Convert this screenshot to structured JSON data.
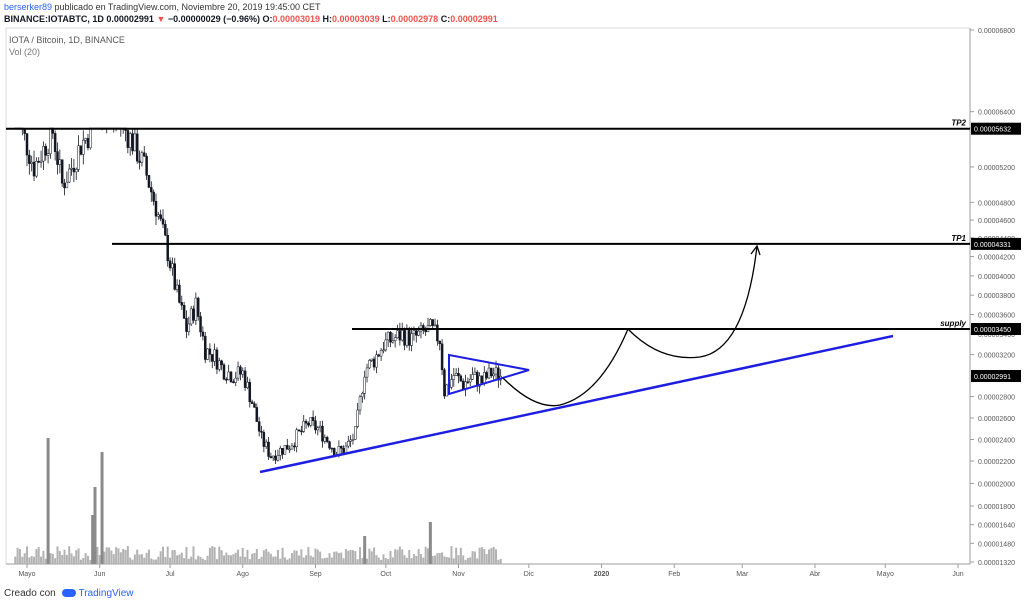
{
  "header": {
    "user": "berserker89",
    "published": "publicado en TradingView.com, Noviembre 20, 2019 19:45:00 CET",
    "symbol_line": "BINANCE:IOTABTC, 1D",
    "last": "0.00002991",
    "change": "−0.00000029 (−0.96%)",
    "ohlc_o_label": "O:",
    "ohlc_o": "0.00003019",
    "ohlc_h_label": "H:",
    "ohlc_h": "0.00003039",
    "ohlc_l_label": "L:",
    "ohlc_l": "0.00002978",
    "ohlc_c_label": "C:",
    "ohlc_c": "0.00002991"
  },
  "legend": {
    "symbol": "IOTA / Bitcoin, 1D, BINANCE",
    "volume": "Vol (20)"
  },
  "footer": {
    "created": "Creado con",
    "brand": "TradingView"
  },
  "colors": {
    "up": "#131722",
    "down": "#131722",
    "trend": "#1e1ee0",
    "level": "#000000",
    "volume": "#b2b2b2",
    "volume_peak": "#8a8a8a"
  },
  "chart_data": {
    "type": "candlestick",
    "x_labels": [
      "Mayo",
      "Jun",
      "Jul",
      "Ago",
      "Sep",
      "Oct",
      "Nov",
      "Dic",
      "2020",
      "Feb",
      "Mar",
      "Abr",
      "Mayo",
      "Jun"
    ],
    "y_ticks": [
      "0.00006800",
      "0.00006400",
      "0.00006000",
      "0.00005632",
      "0.00005200",
      "0.00004800",
      "0.00004600",
      "0.00004400",
      "0.00004331",
      "0.00004200",
      "0.00004000",
      "0.00003800",
      "0.00003600",
      "0.00003450",
      "0.00003400",
      "0.00003200",
      "0.00002991",
      "0.00002800",
      "0.00002600",
      "0.00002400",
      "0.00002200",
      "0.00002000",
      "0.00001800",
      "0.00001640",
      "0.00001480",
      "0.00001320"
    ],
    "y_ticks_plain": [
      "0.00006800",
      "0.00006400",
      "0.00006000",
      "0.00005200",
      "0.00004800",
      "0.00004600",
      "0.00004400",
      "0.00004200",
      "0.00004000",
      "0.00003800",
      "0.00003600",
      "0.00003400",
      "0.00003200",
      "0.00002800",
      "0.00002600",
      "0.00002400",
      "0.00002200",
      "0.00002000",
      "0.00001800",
      "0.00001640",
      "0.00001480",
      "0.00001320"
    ],
    "levels": [
      {
        "label": "TP2",
        "value": "0.00005632",
        "y": 5.632e-05
      },
      {
        "label": "TP1",
        "value": "0.00004331",
        "y": 4.331e-05
      },
      {
        "label": "supply",
        "value": "0.00003450",
        "y": 3.45e-05
      }
    ],
    "last_price": {
      "value": "0.00002991",
      "y": 2.991e-05
    },
    "price_path": [
      {
        "d": "2019-04-26",
        "c": 5.74e-05
      },
      {
        "d": "2019-04-30",
        "c": 5.52e-05
      },
      {
        "d": "2019-05-04",
        "c": 5.2e-05
      },
      {
        "d": "2019-05-08",
        "c": 5.4e-05
      },
      {
        "d": "2019-05-12",
        "c": 5.6e-05
      },
      {
        "d": "2019-05-16",
        "c": 5e-05
      },
      {
        "d": "2019-05-20",
        "c": 5.2e-05
      },
      {
        "d": "2019-05-24",
        "c": 5.45e-05
      },
      {
        "d": "2019-05-28",
        "c": 5.6e-05
      },
      {
        "d": "2019-06-01",
        "c": 5.78e-05
      },
      {
        "d": "2019-06-05",
        "c": 5.75e-05
      },
      {
        "d": "2019-06-10",
        "c": 5.7e-05
      },
      {
        "d": "2019-06-15",
        "c": 5.48e-05
      },
      {
        "d": "2019-06-20",
        "c": 5.2e-05
      },
      {
        "d": "2019-06-25",
        "c": 4.75e-05
      },
      {
        "d": "2019-06-30",
        "c": 4.25e-05
      },
      {
        "d": "2019-07-04",
        "c": 3.8e-05
      },
      {
        "d": "2019-07-08",
        "c": 3.45e-05
      },
      {
        "d": "2019-07-12",
        "c": 3.7e-05
      },
      {
        "d": "2019-07-16",
        "c": 3.25e-05
      },
      {
        "d": "2019-07-20",
        "c": 3.18e-05
      },
      {
        "d": "2019-07-24",
        "c": 3.05e-05
      },
      {
        "d": "2019-07-28",
        "c": 3e-05
      },
      {
        "d": "2019-08-01",
        "c": 3.02e-05
      },
      {
        "d": "2019-08-05",
        "c": 2.75e-05
      },
      {
        "d": "2019-08-09",
        "c": 2.4e-05
      },
      {
        "d": "2019-08-13",
        "c": 2.25e-05
      },
      {
        "d": "2019-08-17",
        "c": 2.3e-05
      },
      {
        "d": "2019-08-21",
        "c": 2.35e-05
      },
      {
        "d": "2019-08-25",
        "c": 2.45e-05
      },
      {
        "d": "2019-08-29",
        "c": 2.55e-05
      },
      {
        "d": "2019-09-02",
        "c": 2.5e-05
      },
      {
        "d": "2019-09-06",
        "c": 2.4e-05
      },
      {
        "d": "2019-09-10",
        "c": 2.28e-05
      },
      {
        "d": "2019-09-14",
        "c": 2.32e-05
      },
      {
        "d": "2019-09-18",
        "c": 2.45e-05
      },
      {
        "d": "2019-09-22",
        "c": 3.05e-05
      },
      {
        "d": "2019-09-26",
        "c": 3.15e-05
      },
      {
        "d": "2019-09-30",
        "c": 3.3e-05
      },
      {
        "d": "2019-10-04",
        "c": 3.35e-05
      },
      {
        "d": "2019-10-08",
        "c": 3.4e-05
      },
      {
        "d": "2019-10-12",
        "c": 3.35e-05
      },
      {
        "d": "2019-10-16",
        "c": 3.4e-05
      },
      {
        "d": "2019-10-20",
        "c": 3.45e-05
      },
      {
        "d": "2019-10-24",
        "c": 3.35e-05
      },
      {
        "d": "2019-10-26",
        "c": 2.85e-05
      },
      {
        "d": "2019-10-30",
        "c": 3e-05
      },
      {
        "d": "2019-11-03",
        "c": 2.92e-05
      },
      {
        "d": "2019-11-07",
        "c": 2.98e-05
      },
      {
        "d": "2019-11-11",
        "c": 2.94e-05
      },
      {
        "d": "2019-11-15",
        "c": 3.02e-05
      },
      {
        "d": "2019-11-20",
        "c": 2.99e-05
      }
    ]
  }
}
